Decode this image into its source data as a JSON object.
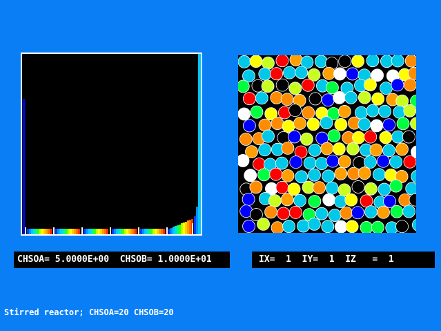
{
  "left_panel": {
    "title": ""
  },
  "right_panel": {
    "title": ""
  },
  "status_left": "CHSOA= 5.0000E+00  CHSOB= 1.0000E+01",
  "status_right": "IX=  1  IY=  1  IZ   =  1",
  "caption": "Stirred reactor; CHSOA=20 CHSOB=20",
  "colors": {
    "background": "#0a7ff5",
    "panel": "#000000",
    "text": "#ffffff"
  },
  "palette": [
    "#0000ff",
    "#0080ff",
    "#00c8ff",
    "#00e0e0",
    "#00ff80",
    "#00ff00",
    "#a0ff20",
    "#ffff00",
    "#ffc000",
    "#ff8000",
    "#ff4000",
    "#ff0000",
    "#ffffff"
  ]
}
